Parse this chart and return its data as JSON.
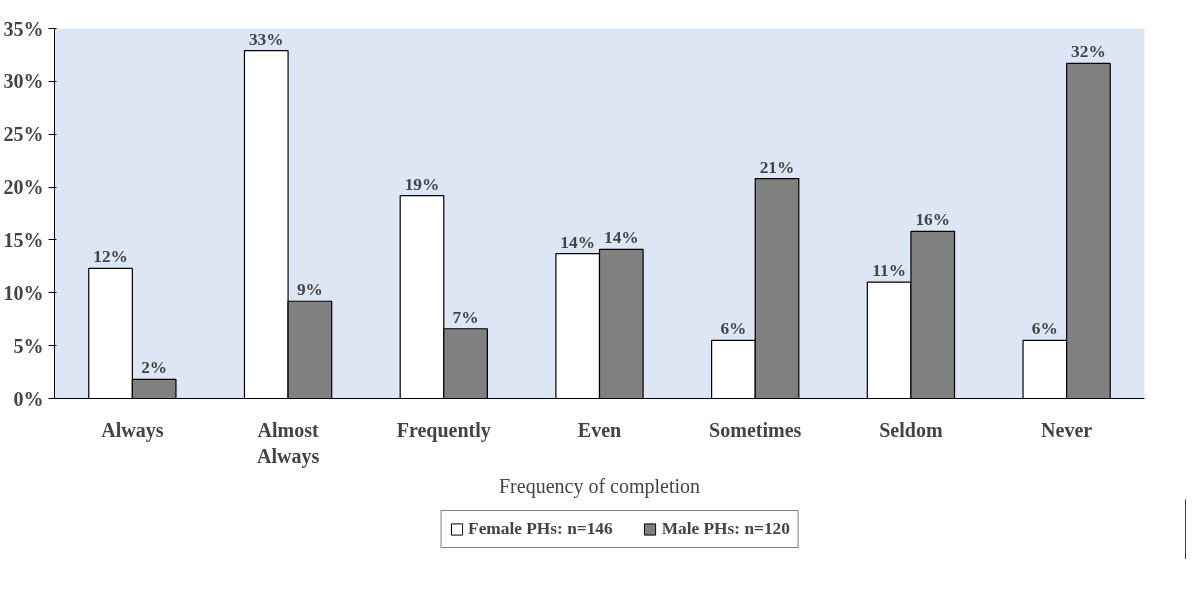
{
  "chart_data": {
    "type": "bar",
    "xlabel": "Frequency of completion",
    "categories": [
      "Always",
      "Almost Always",
      "Frequently",
      "Even",
      "Sometimes",
      "Seldom",
      "Never"
    ],
    "series": [
      {
        "name": "Female PHs: n=146",
        "color": "#ffffff",
        "values": [
          12.3,
          32.9,
          19.2,
          13.7,
          5.5,
          11.0,
          5.5
        ],
        "value_labels": [
          "12%",
          "33%",
          "19%",
          "14%",
          "6%",
          "11%",
          "6%"
        ]
      },
      {
        "name": "Male PHs: n=120",
        "color": "#808080",
        "values": [
          1.8,
          9.2,
          6.6,
          14.1,
          20.8,
          15.8,
          31.7
        ],
        "value_labels": [
          "2%",
          "9%",
          "7%",
          "14%",
          "21%",
          "16%",
          "32%"
        ]
      }
    ],
    "ylim": [
      0,
      35
    ],
    "yticks": [
      {
        "value": 0,
        "label": "0%"
      },
      {
        "value": 5,
        "label": "5%"
      },
      {
        "value": 10,
        "label": "10%"
      },
      {
        "value": 15,
        "label": "15%"
      },
      {
        "value": 20,
        "label": "20%"
      },
      {
        "value": 25,
        "label": "25%"
      },
      {
        "value": 30,
        "label": "30%"
      },
      {
        "value": 35,
        "label": "35%"
      }
    ],
    "grid": false,
    "legend": "bottom"
  }
}
